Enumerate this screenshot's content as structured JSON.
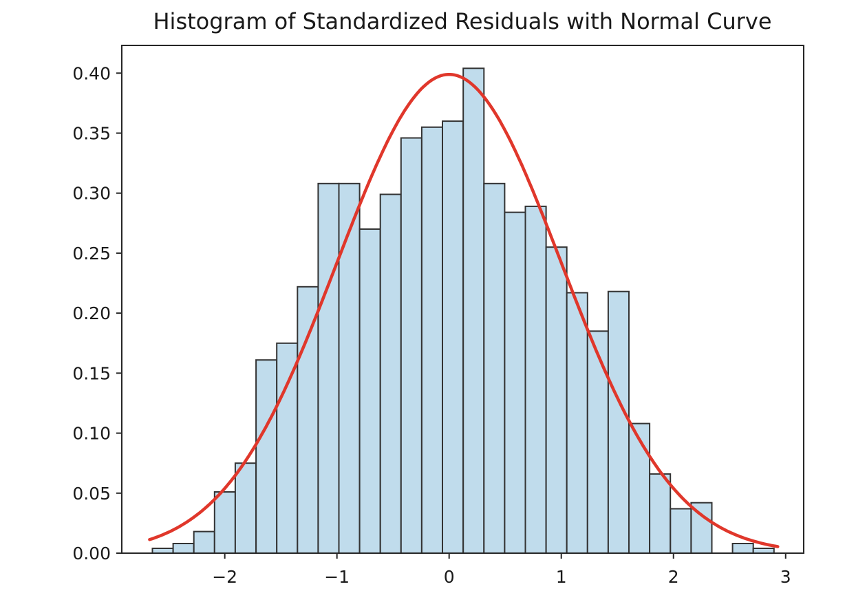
{
  "chart_data": {
    "type": "bar",
    "subtype": "histogram-with-normal-curve",
    "title": "Histogram of Standardized Residuals with Normal Curve",
    "xlabel": "",
    "ylabel": "",
    "xlim": [
      -2.918,
      3.161
    ],
    "ylim": [
      0,
      0.4231
    ],
    "grid": false,
    "legend": "none",
    "x_ticks": [
      -2,
      -1,
      0,
      1,
      2,
      3
    ],
    "x_tick_labels": [
      "−2",
      "−1",
      "0",
      "1",
      "2",
      "3"
    ],
    "y_ticks": [
      0,
      0.05,
      0.1,
      0.15,
      0.2,
      0.25,
      0.3,
      0.35,
      0.4
    ],
    "y_tick_labels": [
      "0.00",
      "0.05",
      "0.10",
      "0.15",
      "0.20",
      "0.25",
      "0.30",
      "0.35",
      "0.40"
    ],
    "bins": {
      "start": -2.645,
      "width": 0.1847,
      "heights": [
        0.004,
        0.008,
        0.018,
        0.051,
        0.075,
        0.161,
        0.175,
        0.222,
        0.308,
        0.308,
        0.27,
        0.299,
        0.346,
        0.355,
        0.36,
        0.404,
        0.308,
        0.284,
        0.289,
        0.255,
        0.217,
        0.185,
        0.218,
        0.108,
        0.066,
        0.037,
        0.042,
        0.0,
        0.008,
        0.004
      ]
    },
    "curve": {
      "label": "normal-pdf",
      "mean": 0,
      "sd": 1,
      "x_range": [
        -2.67,
        2.93
      ],
      "peak_value": 0.3989
    },
    "colors": {
      "bar_fill": "#c0dcec",
      "bar_edge": "#333333",
      "curve": "#e0372b",
      "axis": "#262626",
      "text": "#1a1a1a",
      "background": "#ffffff"
    }
  }
}
